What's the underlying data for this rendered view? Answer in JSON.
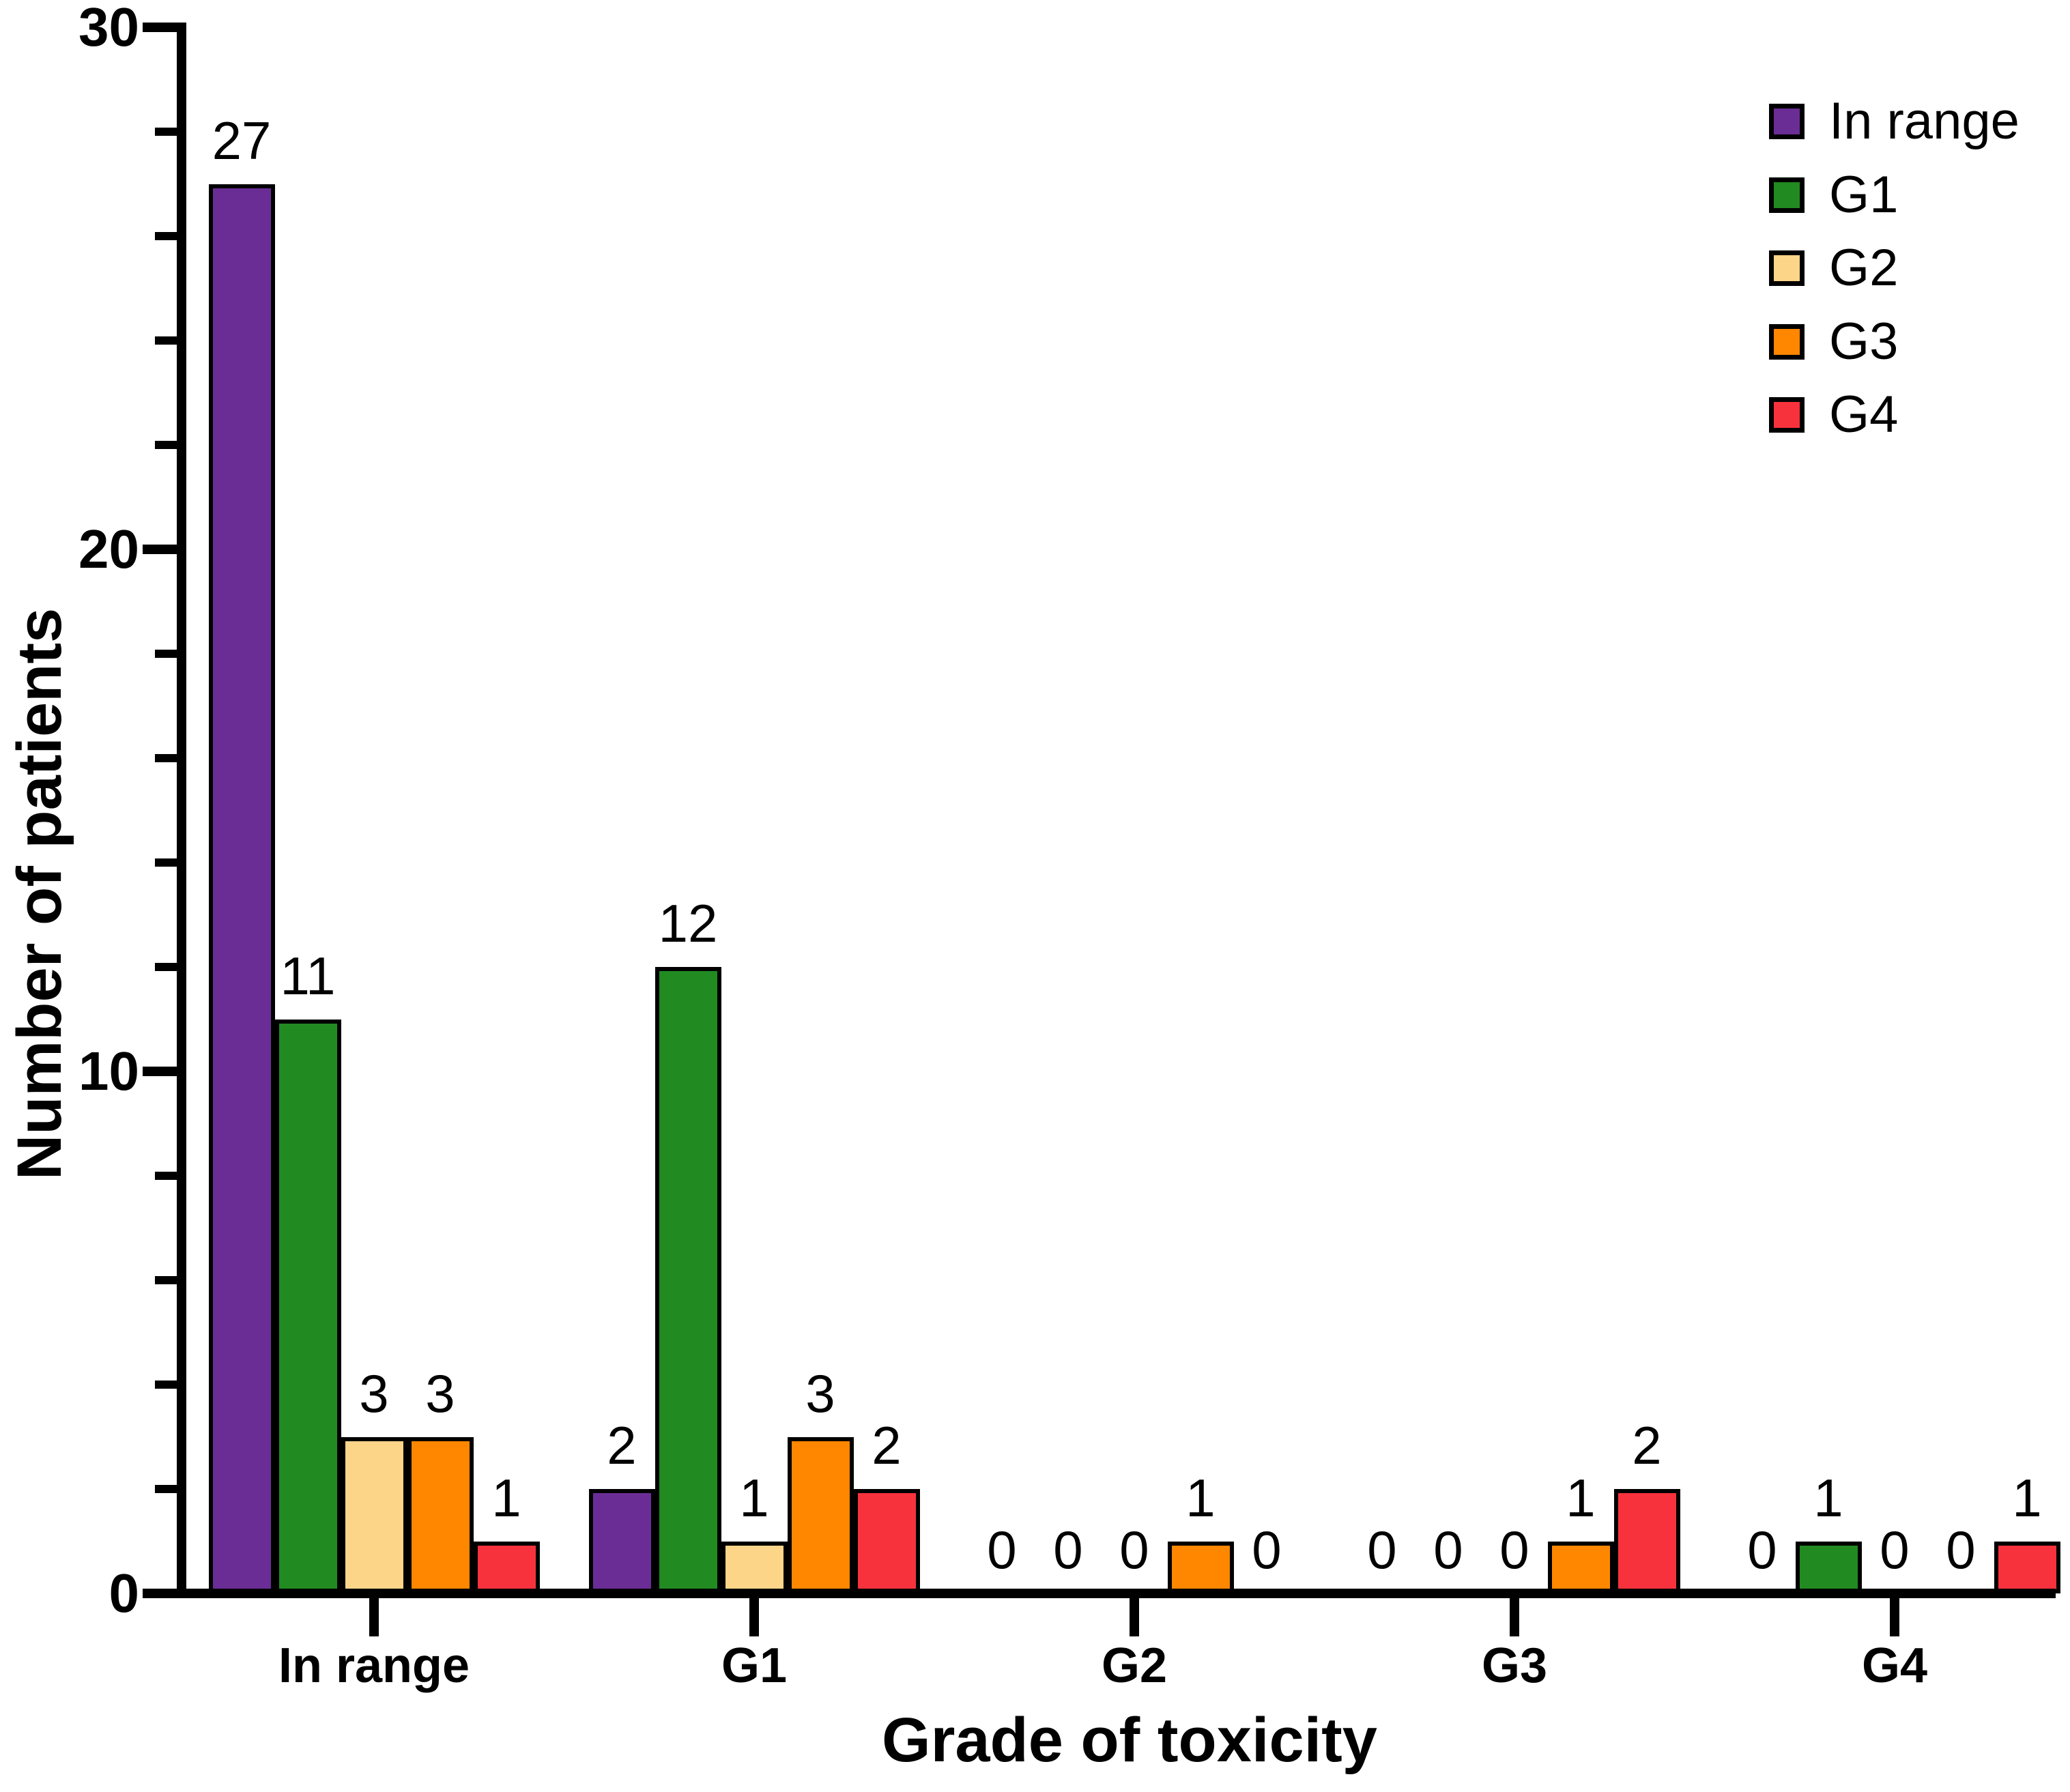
{
  "chart_data": {
    "type": "bar",
    "title": "",
    "xlabel": "Grade of toxicity",
    "ylabel": "Number of patients",
    "categories": [
      "In range",
      "G1",
      "G2",
      "G3",
      "G4"
    ],
    "series": [
      {
        "name": "In range",
        "color": "#6A2D95",
        "values": [
          27,
          2,
          0,
          0,
          0
        ]
      },
      {
        "name": "G1",
        "color": "#218A21",
        "values": [
          11,
          12,
          0,
          0,
          1
        ]
      },
      {
        "name": "G2",
        "color": "#FCD589",
        "values": [
          3,
          1,
          0,
          0,
          0
        ]
      },
      {
        "name": "G3",
        "color": "#FF8700",
        "values": [
          3,
          3,
          1,
          1,
          0
        ]
      },
      {
        "name": "G4",
        "color": "#F8323C",
        "values": [
          1,
          2,
          0,
          2,
          1
        ]
      }
    ],
    "ylim": [
      0,
      30
    ],
    "y_major_ticks": [
      0,
      10,
      20,
      30
    ],
    "y_minor_tick_step": 2,
    "bar_value_labels": true,
    "grid": false,
    "legend_position": "top-right",
    "bar_border_color": "#000000",
    "axis_color": "#000000",
    "background_color": "#FFFFFF"
  }
}
